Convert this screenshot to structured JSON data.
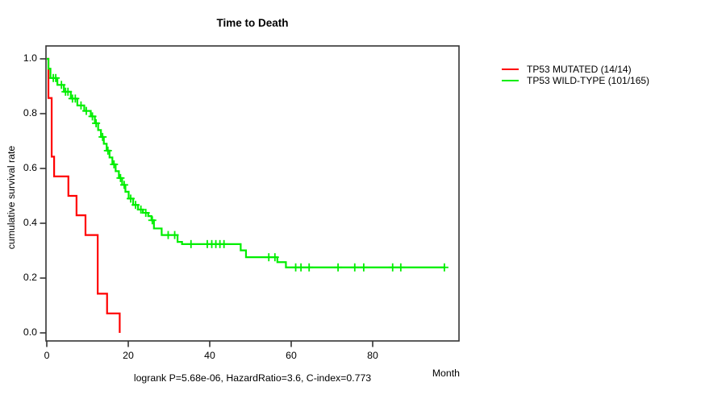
{
  "title": "Time to Death",
  "footer": "logrank P=5.68e-06, HazardRatio=3.6, C-index=0.773",
  "axes": {
    "x_label": "Month",
    "y_label": "cumulative survival rate",
    "x_ticks": [
      "0",
      "20",
      "40",
      "60",
      "80"
    ],
    "y_ticks": [
      "0.0",
      "0.2",
      "0.4",
      "0.6",
      "0.8",
      "1.0"
    ]
  },
  "legend": [
    {
      "label": "TP53 MUTATED (14/14)",
      "color": "#ff0000"
    },
    {
      "label": "TP53 WILD-TYPE (101/165)",
      "color": "#00ee00"
    }
  ],
  "chart_data": {
    "type": "line",
    "subtype": "kaplan-meier-step",
    "title": "Time to Death",
    "xlabel": "Month",
    "ylabel": "cumulative survival rate",
    "xlim": [
      0,
      101
    ],
    "ylim": [
      0,
      1.0
    ],
    "x_ticks": [
      0,
      20,
      40,
      60,
      80
    ],
    "y_ticks": [
      0,
      0.2,
      0.4,
      0.6,
      0.8,
      1.0
    ],
    "grid": false,
    "legend_position": "right-outside",
    "annotation": "logrank P=5.68e-06, HazardRatio=3.6, C-index=0.773",
    "series": [
      {
        "name": "TP53 MUTATED (14/14)",
        "color": "#ff0000",
        "n": 14,
        "events": 14,
        "end_month": 17.9,
        "steps": [
          [
            0,
            1.0
          ],
          [
            0.4,
            0.857
          ],
          [
            1.2,
            0.643
          ],
          [
            1.8,
            0.571
          ],
          [
            5.3,
            0.5
          ],
          [
            7.3,
            0.429
          ],
          [
            9.5,
            0.357
          ],
          [
            12.5,
            0.143
          ],
          [
            14.8,
            0.071
          ],
          [
            17.9,
            0.0
          ]
        ],
        "censor_marks": []
      },
      {
        "name": "TP53 WILD-TYPE (101/165)",
        "color": "#00ee00",
        "n": 165,
        "events": 101,
        "end_month": 97.8,
        "steps": [
          [
            0,
            1.0
          ],
          [
            0.4,
            0.964
          ],
          [
            0.9,
            0.93
          ],
          [
            2.6,
            0.905
          ],
          [
            4.2,
            0.88
          ],
          [
            5.9,
            0.855
          ],
          [
            7.5,
            0.83
          ],
          [
            9.2,
            0.81
          ],
          [
            10.8,
            0.79
          ],
          [
            11.8,
            0.765
          ],
          [
            12.6,
            0.74
          ],
          [
            13.3,
            0.715
          ],
          [
            14.0,
            0.69
          ],
          [
            14.7,
            0.665
          ],
          [
            15.4,
            0.64
          ],
          [
            16.1,
            0.615
          ],
          [
            16.9,
            0.59
          ],
          [
            17.7,
            0.565
          ],
          [
            18.5,
            0.54
          ],
          [
            19.3,
            0.515
          ],
          [
            20.1,
            0.49
          ],
          [
            21.2,
            0.467
          ],
          [
            22.4,
            0.45
          ],
          [
            23.6,
            0.438
          ],
          [
            24.9,
            0.426
          ],
          [
            25.7,
            0.411
          ],
          [
            26.3,
            0.381
          ],
          [
            28.2,
            0.357
          ],
          [
            32.1,
            0.332
          ],
          [
            33.2,
            0.324
          ],
          [
            47.6,
            0.301
          ],
          [
            48.9,
            0.276
          ],
          [
            56.6,
            0.258
          ],
          [
            58.7,
            0.239
          ]
        ],
        "censor_marks": [
          [
            1.6,
            0.93
          ],
          [
            2.2,
            0.93
          ],
          [
            3.6,
            0.905
          ],
          [
            4.6,
            0.88
          ],
          [
            5.2,
            0.88
          ],
          [
            6.3,
            0.855
          ],
          [
            7.0,
            0.855
          ],
          [
            8.4,
            0.83
          ],
          [
            9.7,
            0.81
          ],
          [
            11.2,
            0.79
          ],
          [
            12.1,
            0.765
          ],
          [
            13.7,
            0.715
          ],
          [
            15.0,
            0.665
          ],
          [
            16.5,
            0.615
          ],
          [
            18.1,
            0.565
          ],
          [
            19.0,
            0.54
          ],
          [
            20.6,
            0.49
          ],
          [
            21.8,
            0.467
          ],
          [
            23.1,
            0.45
          ],
          [
            24.3,
            0.438
          ],
          [
            25.9,
            0.411
          ],
          [
            29.8,
            0.357
          ],
          [
            31.4,
            0.357
          ],
          [
            35.4,
            0.324
          ],
          [
            39.4,
            0.324
          ],
          [
            40.5,
            0.324
          ],
          [
            41.5,
            0.324
          ],
          [
            42.5,
            0.324
          ],
          [
            43.5,
            0.324
          ],
          [
            54.5,
            0.276
          ],
          [
            56.0,
            0.276
          ],
          [
            61.1,
            0.239
          ],
          [
            62.4,
            0.239
          ],
          [
            64.4,
            0.239
          ],
          [
            71.5,
            0.239
          ],
          [
            75.6,
            0.239
          ],
          [
            77.8,
            0.239
          ],
          [
            84.9,
            0.239
          ],
          [
            86.9,
            0.239
          ],
          [
            97.6,
            0.239
          ]
        ]
      }
    ]
  }
}
